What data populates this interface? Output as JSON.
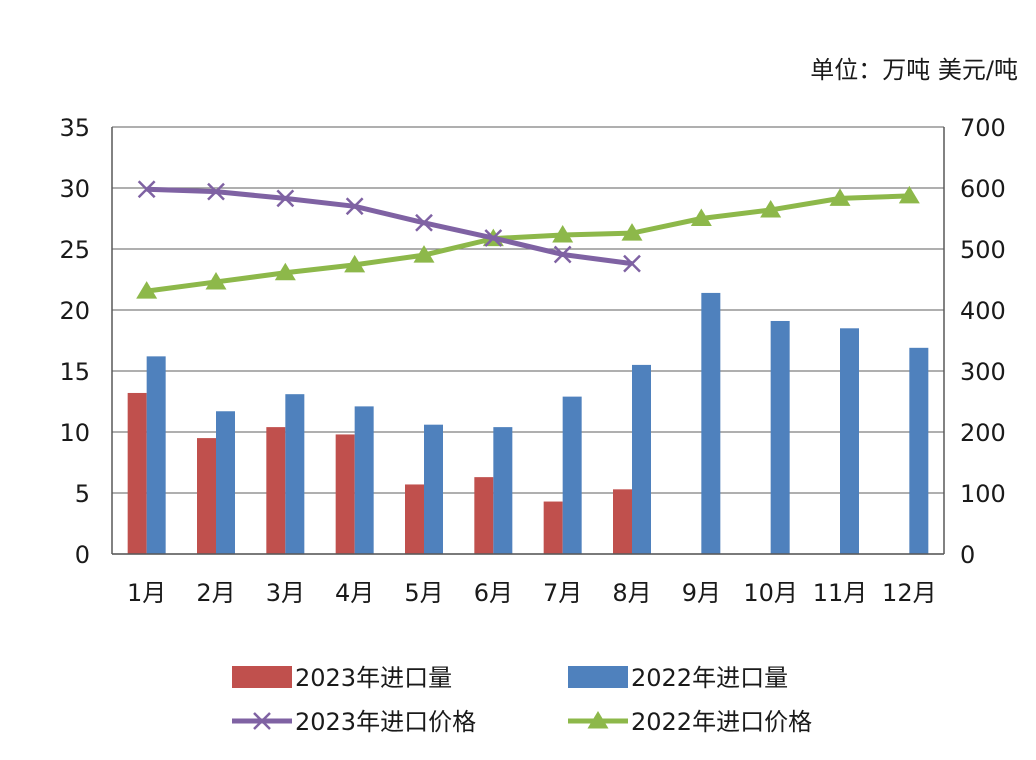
{
  "chart_data": {
    "type": "bar",
    "unit_label": "单位：万吨 美元/吨",
    "categories": [
      "1月",
      "2月",
      "3月",
      "4月",
      "5月",
      "6月",
      "7月",
      "8月",
      "9月",
      "10月",
      "11月",
      "12月"
    ],
    "y_left": {
      "min": 0,
      "max": 35,
      "ticks": [
        0,
        5,
        10,
        15,
        20,
        25,
        30,
        35
      ]
    },
    "y_right": {
      "min": 0,
      "max": 700,
      "ticks": [
        0,
        100,
        200,
        300,
        400,
        500,
        600,
        700
      ]
    },
    "grid": true,
    "legend_position": "bottom",
    "series": [
      {
        "name": "2023年进口量",
        "kind": "bar",
        "axis": "left",
        "color": "#c0504d",
        "values": [
          13.2,
          9.5,
          10.4,
          9.8,
          5.7,
          6.3,
          4.3,
          5.3,
          null,
          null,
          null,
          null
        ]
      },
      {
        "name": "2022年进口量",
        "kind": "bar",
        "axis": "left",
        "color": "#4f81bd",
        "values": [
          16.2,
          11.7,
          13.1,
          12.1,
          10.6,
          10.4,
          12.9,
          15.5,
          21.4,
          19.1,
          18.5,
          16.9
        ]
      },
      {
        "name": "2023年进口价格",
        "kind": "line",
        "axis": "right",
        "color": "#7f62a3",
        "marker": "x",
        "values": [
          598,
          594,
          583,
          570,
          543,
          518,
          491,
          476,
          null,
          null,
          null,
          null
        ]
      },
      {
        "name": "2022年进口价格",
        "kind": "line",
        "axis": "right",
        "color": "#8db84a",
        "marker": "triangle",
        "values": [
          431,
          446,
          461,
          474,
          490,
          517,
          523,
          526,
          550,
          564,
          583,
          587
        ]
      }
    ]
  }
}
